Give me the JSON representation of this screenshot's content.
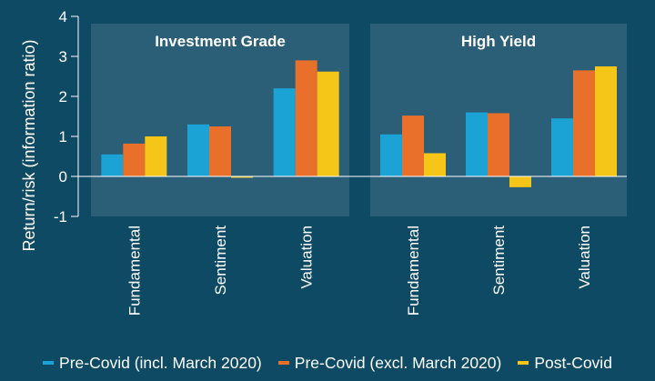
{
  "chart_data": {
    "type": "bar",
    "ylabel": "Return/risk (information ratio)",
    "ylim": [
      -1,
      4
    ],
    "yticks": [
      "-1",
      "0",
      "1",
      "2",
      "3",
      "4"
    ],
    "grid": false,
    "legend_position": "bottom",
    "series": [
      {
        "name": "Pre-Covid (incl. March 2020)",
        "color": "#1ba3d6"
      },
      {
        "name": "Pre-Covid (excl. March 2020)",
        "color": "#e8702a"
      },
      {
        "name": "Post-Covid",
        "color": "#f5c518"
      }
    ],
    "panels": [
      {
        "title": "Investment Grade",
        "categories": [
          "Fundamental",
          "Sentiment",
          "Valuation"
        ],
        "values": [
          [
            0.55,
            0.82,
            1.0
          ],
          [
            1.3,
            1.25,
            -0.02
          ],
          [
            2.2,
            2.9,
            2.62
          ]
        ]
      },
      {
        "title": "High Yield",
        "categories": [
          "Fundamental",
          "Sentiment",
          "Valuation"
        ],
        "values": [
          [
            1.05,
            1.52,
            0.58
          ],
          [
            1.6,
            1.58,
            -0.27
          ],
          [
            1.45,
            2.65,
            2.75
          ]
        ]
      }
    ]
  },
  "colors": {
    "background": "#0e4a63",
    "panel": "#2b5f78",
    "axis": "#ffffff"
  }
}
